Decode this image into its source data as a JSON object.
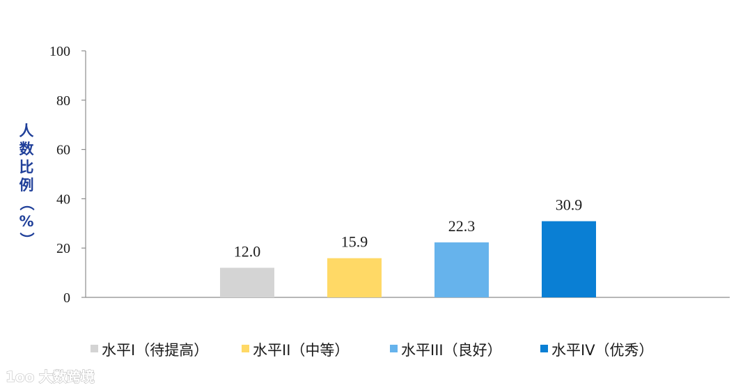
{
  "chart_data": {
    "type": "bar",
    "categories": [
      "水平I（待提高）",
      "水平II（中等）",
      "水平III（良好）",
      "水平IV（优秀）"
    ],
    "values": [
      12.0,
      15.9,
      22.3,
      30.9
    ],
    "data_labels": [
      "12.0",
      "15.9",
      "22.3",
      "30.9"
    ],
    "colors": [
      "#d4d4d4",
      "#ffd966",
      "#66b3ec",
      "#0a7fd4"
    ],
    "ylabel": "人数比例（%）",
    "ylim": [
      0,
      100
    ],
    "yticks": [
      0,
      20,
      40,
      60,
      80,
      100
    ],
    "grid": false,
    "legend_position": "bottom"
  },
  "watermark": {
    "text": "大数跨境",
    "logo": "1oo"
  }
}
